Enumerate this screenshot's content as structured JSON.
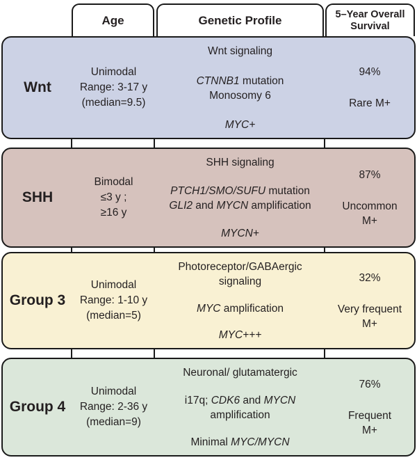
{
  "header": {
    "age": "Age",
    "genetic_profile": "Genetic Profile",
    "survival": [
      "5–Year Overall",
      "Survival"
    ]
  },
  "colors": {
    "wnt_bg": "#ccd2e5",
    "shh_bg": "#d6c2bd",
    "group3_bg": "#f9f1d3",
    "group4_bg": "#dbe7da",
    "border": "#1a1a1a",
    "text": "#231f20"
  },
  "rows": [
    {
      "label": "Wnt",
      "age": [
        "Unimodal",
        "Range: 3-17 y",
        "(median=9.5)"
      ],
      "genetic": {
        "signaling": [
          [
            {
              "t": "Wnt signaling"
            }
          ]
        ],
        "mid": [
          [
            {
              "t": "CTNNB1",
              "i": true
            },
            {
              "t": " mutation"
            }
          ],
          [
            {
              "t": "Monosomy 6"
            }
          ]
        ],
        "bottom": [
          {
            "t": "MYC+",
            "i": true
          }
        ]
      },
      "survival": {
        "rate": "94%",
        "metastasis": [
          "Rare M+"
        ]
      }
    },
    {
      "label": "SHH",
      "age": [
        "Bimodal",
        "≤3 y ;",
        "≥16 y"
      ],
      "genetic": {
        "signaling": [
          [
            {
              "t": "SHH signaling"
            }
          ]
        ],
        "mid": [
          [
            {
              "t": "PTCH1/SMO/SUFU",
              "i": true
            },
            {
              "t": " mutation"
            }
          ],
          [
            {
              "t": "GLI2",
              "i": true
            },
            {
              "t": " and "
            },
            {
              "t": "MYCN",
              "i": true
            },
            {
              "t": " amplification"
            }
          ]
        ],
        "bottom": [
          {
            "t": "MYCN+",
            "i": true
          }
        ]
      },
      "survival": {
        "rate": "87%",
        "metastasis": [
          "Uncommon",
          "M+"
        ]
      }
    },
    {
      "label": "Group 3",
      "age": [
        "Unimodal",
        "Range: 1-10 y",
        "(median=5)"
      ],
      "genetic": {
        "signaling": [
          [
            {
              "t": "Photoreceptor/GABAergic"
            }
          ],
          [
            {
              "t": "signaling"
            }
          ]
        ],
        "mid": [
          [
            {
              "t": "MYC",
              "i": true
            },
            {
              "t": " amplification"
            }
          ]
        ],
        "bottom": [
          {
            "t": "MYC+++",
            "i": true
          }
        ]
      },
      "survival": {
        "rate": "32%",
        "metastasis": [
          "Very frequent",
          "M+"
        ]
      }
    },
    {
      "label": "Group 4",
      "age": [
        "Unimodal",
        "Range: 2-36 y",
        "(median=9)"
      ],
      "genetic": {
        "signaling": [
          [
            {
              "t": "Neuronal/ glutamatergic"
            }
          ]
        ],
        "mid": [
          [
            {
              "t": "i17q; "
            },
            {
              "t": "CDK6",
              "i": true
            },
            {
              "t": " and "
            },
            {
              "t": "MYCN",
              "i": true
            }
          ],
          [
            {
              "t": "amplification"
            }
          ]
        ],
        "bottom": [
          {
            "t": "Minimal "
          },
          {
            "t": "MYC/MYCN",
            "i": true
          }
        ]
      },
      "survival": {
        "rate": "76%",
        "metastasis": [
          "Frequent",
          "M+"
        ]
      }
    }
  ]
}
